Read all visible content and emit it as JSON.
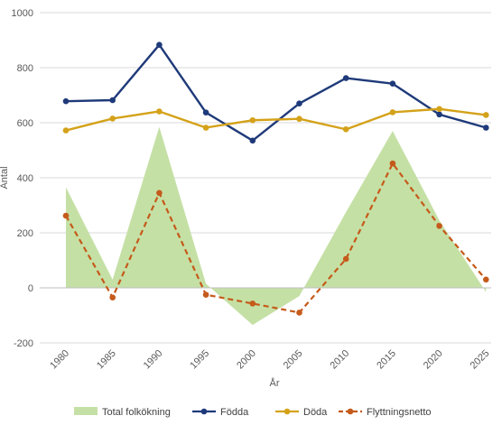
{
  "chart_data": {
    "type": "line",
    "title": "",
    "xlabel": "År",
    "ylabel": "Antal",
    "x": [
      "1980",
      "1985",
      "1990",
      "1995",
      "2000",
      "2005",
      "2010",
      "2015",
      "2020",
      "2025"
    ],
    "ylim": [
      -200,
      1000
    ],
    "yticks": [
      -200,
      0,
      200,
      400,
      600,
      800,
      1000
    ],
    "grid": true,
    "legend": "bottom",
    "series": [
      {
        "name": "Total folkökning",
        "type": "area",
        "color": "#c5e0a5",
        "values": [
          365,
          30,
          585,
          15,
          -135,
          -30,
          275,
          570,
          245,
          -15
        ]
      },
      {
        "name": "Födda",
        "type": "line",
        "color": "#1f3a7a",
        "values": [
          678,
          682,
          883,
          637,
          535,
          670,
          762,
          742,
          630,
          582
        ]
      },
      {
        "name": "Döda",
        "type": "line",
        "color": "#d4a21a",
        "values": [
          572,
          615,
          641,
          582,
          609,
          614,
          576,
          638,
          650,
          628
        ]
      },
      {
        "name": "Flyttningsnetto",
        "type": "dashed-line",
        "color": "#c55a1a",
        "values": [
          262,
          -35,
          345,
          -25,
          -57,
          -90,
          105,
          452,
          225,
          30
        ]
      }
    ]
  }
}
